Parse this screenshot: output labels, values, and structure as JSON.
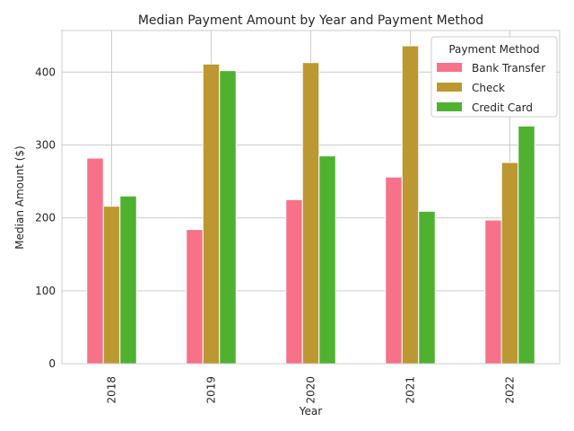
{
  "chart_data": {
    "type": "bar",
    "title": "Median Payment Amount by Year and Payment Method",
    "xlabel": "Year",
    "ylabel": "Median Amount ($)",
    "categories": [
      "2018",
      "2019",
      "2020",
      "2021",
      "2022"
    ],
    "series": [
      {
        "name": "Bank Transfer",
        "color": "#f77189",
        "values": [
          282,
          184,
          225,
          256,
          197
        ]
      },
      {
        "name": "Check",
        "color": "#bb9832",
        "values": [
          216,
          411,
          413,
          436,
          276
        ]
      },
      {
        "name": "Credit Card",
        "color": "#50b131",
        "values": [
          230,
          402,
          285,
          209,
          326
        ]
      }
    ],
    "ylim": [
      0,
      457
    ],
    "yticks": [
      0,
      100,
      200,
      300,
      400
    ],
    "grid": true,
    "legend": {
      "title": "Payment Method",
      "placement": "top-right"
    }
  }
}
